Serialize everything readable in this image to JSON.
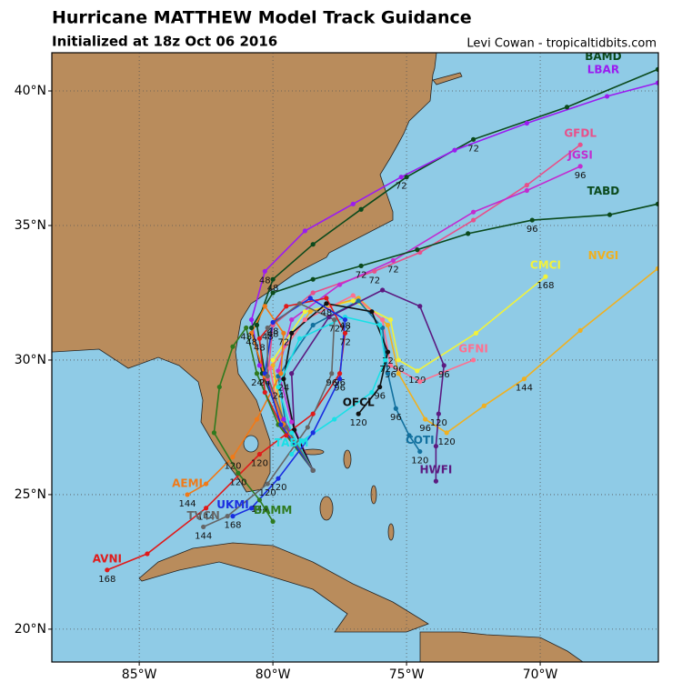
{
  "header": {
    "title": "Hurricane MATTHEW Model Track Guidance",
    "subtitle": "Initialized at 18z Oct 06 2016",
    "credit": "Levi Cowan - tropicaltidbits.com"
  },
  "map": {
    "lonlim": [
      -88.27,
      -65.58
    ],
    "latlim": [
      18.78,
      41.42
    ],
    "lonticks": [
      {
        "value": -85,
        "label": "85°W"
      },
      {
        "value": -80,
        "label": "80°W"
      },
      {
        "value": -75,
        "label": "75°W"
      },
      {
        "value": -70,
        "label": "70°W"
      }
    ],
    "latticks": [
      {
        "value": 20,
        "label": "20°N"
      },
      {
        "value": 25,
        "label": "25°N"
      },
      {
        "value": 30,
        "label": "30°N"
      },
      {
        "value": 35,
        "label": "35°N"
      },
      {
        "value": 40,
        "label": "40°N"
      }
    ],
    "grid": true,
    "tracks": [
      {
        "name": "BAMD",
        "color": "#0b4a1c",
        "lon": [
          -78.5,
          -79.5,
          -80.3,
          -80.6,
          -80,
          -78.5,
          -76.7,
          -75,
          -72.5,
          -69,
          -65.6
        ],
        "lat": [
          25.9,
          27.5,
          29.5,
          31.3,
          33,
          34.3,
          35.6,
          36.8,
          38.2,
          39.4,
          40.8
        ],
        "hours": [
          null,
          null,
          24,
          null,
          48,
          null,
          null,
          null,
          72,
          null,
          null
        ]
      },
      {
        "name": "LBAR",
        "color": "#9b1cf0",
        "lon": [
          -78.5,
          -79.6,
          -80.5,
          -80.8,
          -80.3,
          -78.8,
          -77,
          -75.2,
          -73.2,
          -70.5,
          -67.5,
          -65.6
        ],
        "lat": [
          25.9,
          27.8,
          29.8,
          31.5,
          33.3,
          34.8,
          35.8,
          36.8,
          37.8,
          38.8,
          39.8,
          40.3
        ],
        "hours": [
          null,
          null,
          null,
          null,
          48,
          null,
          null,
          72,
          null,
          null,
          null,
          null
        ]
      },
      {
        "name": "GFDL",
        "color": "#e8508a",
        "lon": [
          -78.5,
          -79.5,
          -80.2,
          -80,
          -78.5,
          -76.2,
          -74.5,
          -72.5,
          -70.5,
          -68.5
        ],
        "lat": [
          25.9,
          27.5,
          29.3,
          31.3,
          32.5,
          33.3,
          34,
          35.2,
          36.5,
          38
        ],
        "hours": [
          null,
          null,
          null,
          48,
          null,
          72,
          null,
          null,
          null,
          null
        ]
      },
      {
        "name": "JGSI",
        "color": "#c22cd0",
        "lon": [
          -78.5,
          -79.3,
          -79.8,
          -79.3,
          -77.5,
          -75.5,
          -72.5,
          -70.5,
          -68.5
        ],
        "lat": [
          25.9,
          27.7,
          29.6,
          31.5,
          32.8,
          33.7,
          35.5,
          36.3,
          37.2
        ],
        "hours": [
          null,
          null,
          null,
          null,
          null,
          72,
          null,
          null,
          96
        ]
      },
      {
        "name": "TABD",
        "color": "#0b4a1c",
        "lon": [
          -78.5,
          -79.6,
          -80.4,
          -80.8,
          -80,
          -78.5,
          -76.7,
          -74.6,
          -72.7,
          -70.3,
          -67.4,
          -65.6
        ],
        "lat": [
          25.9,
          27.6,
          29.5,
          31.2,
          32.5,
          33,
          33.5,
          34.1,
          34.7,
          35.2,
          35.4,
          35.8
        ],
        "hours": [
          null,
          null,
          null,
          null,
          null,
          null,
          72,
          null,
          null,
          96,
          null,
          null
        ]
      },
      {
        "name": "CMCI",
        "color": "#f2f23a",
        "lon": [
          -78.5,
          -79.8,
          -80,
          -78.8,
          -77,
          -75.6,
          -75.3,
          -74.6,
          -72.4,
          -69.8
        ],
        "lat": [
          25.9,
          27.6,
          30,
          31.8,
          32.2,
          31.5,
          30,
          29.6,
          31,
          33.1
        ],
        "hours": [
          null,
          null,
          null,
          null,
          null,
          null,
          96,
          120,
          null,
          168
        ]
      },
      {
        "name": "NVGI",
        "color": "#f0b020",
        "lon": [
          -78.5,
          -79.6,
          -80,
          -78.6,
          -76.8,
          -75.7,
          -75.3,
          -74.3,
          -73.5,
          -72.1,
          -70.6,
          -68.5,
          -65.6
        ],
        "lat": [
          25.9,
          27.6,
          29.8,
          31.8,
          32.3,
          31.3,
          29.5,
          27.8,
          27.3,
          28.3,
          29.3,
          31.1,
          33.4
        ],
        "hours": [
          null,
          null,
          null,
          null,
          null,
          null,
          null,
          96,
          120,
          null,
          144,
          null,
          null
        ]
      },
      {
        "name": "GFNI",
        "color": "#ff6f8f",
        "lon": [
          -78.5,
          -79.7,
          -80.1,
          -78.8,
          -77,
          -75.9,
          -75.6,
          -74.5,
          -72.5
        ],
        "lat": [
          25.9,
          27.6,
          29.7,
          31.5,
          32.4,
          31.5,
          29.8,
          29.2,
          30
        ],
        "hours": [
          null,
          null,
          null,
          null,
          null,
          null,
          96,
          null,
          null
        ]
      },
      {
        "name": "COTI",
        "color": "#12709e",
        "lon": [
          -78.5,
          -79.5,
          -79.8,
          -78.5,
          -76.8,
          -75.9,
          -75.7,
          -75.4,
          -74.9,
          -74.5
        ],
        "lat": [
          25.9,
          27.5,
          29.4,
          31.3,
          32.2,
          31.2,
          29.5,
          28.2,
          27.2,
          26.6
        ],
        "hours": [
          null,
          null,
          null,
          null,
          null,
          null,
          null,
          96,
          null,
          120
        ]
      },
      {
        "name": "HWFI",
        "color": "#5c1a80",
        "lon": [
          -78.5,
          -79.2,
          -79.3,
          -77.9,
          -75.9,
          -74.5,
          -73.6,
          -73.8,
          -73.9,
          -73.9
        ],
        "lat": [
          25.9,
          27.4,
          29.5,
          31.6,
          32.6,
          32,
          29.8,
          28,
          26.8,
          25.5
        ],
        "hours": [
          null,
          null,
          null,
          null,
          null,
          null,
          96,
          120,
          null,
          null
        ]
      },
      {
        "name": "OFCL",
        "color": "#111111",
        "lon": [
          -78.5,
          -79.2,
          -79.6,
          -79.3,
          -78,
          -76.3,
          -75.7,
          -76,
          -76.8
        ],
        "lat": [
          25.9,
          27.4,
          29.3,
          31,
          32.1,
          31.8,
          30.3,
          29,
          28
        ],
        "hours": [
          null,
          null,
          24,
          null,
          48,
          null,
          72,
          96,
          120
        ]
      },
      {
        "name": "TABM",
        "color": "#19e0e6",
        "lon": [
          -78.5,
          -79.3,
          -79.8,
          -79,
          -77.3,
          -76,
          -75.8,
          -76.3,
          -77.7,
          -78.9,
          -79.3
        ],
        "lat": [
          25.9,
          27.3,
          29,
          30.8,
          31.6,
          31.3,
          30,
          28.8,
          27.8,
          27,
          26.5
        ],
        "hours": [
          null,
          null,
          24,
          null,
          48,
          null,
          72,
          null,
          null,
          null,
          null
        ]
      },
      {
        "name": "AVNI",
        "color": "#e01a1a",
        "lon": [
          -78.5,
          -79.5,
          -80.3,
          -80.5,
          -79.5,
          -78,
          -77.3,
          -77.5,
          -78.5,
          -80.5,
          -82.5,
          -84.7,
          -86.2
        ],
        "lat": [
          25.9,
          27.2,
          28.8,
          30.8,
          32,
          32.3,
          31,
          29.5,
          28,
          26.5,
          24.5,
          22.8,
          22.2
        ],
        "hours": [
          null,
          null,
          null,
          48,
          null,
          null,
          72,
          96,
          null,
          120,
          144,
          null,
          168
        ]
      },
      {
        "name": "AEMI",
        "color": "#f07a18",
        "lon": [
          -78.5,
          -79.6,
          -80.3,
          -80.8,
          -80.3,
          -79.6,
          -79.7,
          -80.6,
          -81.5,
          -82.5,
          -83.2
        ],
        "lat": [
          25.9,
          27.6,
          29.4,
          31,
          32,
          31,
          29.5,
          27.8,
          26.4,
          25.4,
          25
        ],
        "hours": [
          null,
          null,
          null,
          48,
          null,
          72,
          null,
          null,
          120,
          null,
          144
        ]
      },
      {
        "name": "BAMM",
        "color": "#2f7a1f",
        "lon": [
          -78.5,
          -79.8,
          -80.6,
          -81,
          -81.5,
          -82,
          -82.2,
          -81.3,
          -80.5,
          -80
        ],
        "lat": [
          25.9,
          27.6,
          29.5,
          31.2,
          30.5,
          29,
          27.3,
          25.8,
          24.8,
          24
        ],
        "hours": [
          null,
          null,
          24,
          48,
          null,
          null,
          null,
          120,
          144,
          null
        ]
      },
      {
        "name": "UKMI",
        "color": "#1a2ee0",
        "lon": [
          -78.5,
          -79.7,
          -80.3,
          -80,
          -78.6,
          -77.3,
          -77.5,
          -78.5,
          -79.8,
          -80.8,
          -81.5
        ],
        "lat": [
          25.9,
          27.6,
          29.5,
          31.4,
          32.3,
          31.5,
          29.3,
          27.3,
          25.6,
          24.5,
          24.2
        ],
        "hours": [
          null,
          null,
          null,
          48,
          null,
          72,
          96,
          null,
          120,
          null,
          168
        ]
      },
      {
        "name": "TVCN",
        "color": "#666666",
        "lon": [
          -78.5,
          -79.5,
          -80.2,
          -80.2,
          -79,
          -77.7,
          -77.8,
          -78.7,
          -80.2,
          -81.7,
          -82.6
        ],
        "lat": [
          25.9,
          27.5,
          29.4,
          31.2,
          32.1,
          31.5,
          29.5,
          27.5,
          25.4,
          24.2,
          23.8
        ],
        "hours": [
          null,
          null,
          null,
          48,
          null,
          72,
          96,
          null,
          120,
          null,
          144
        ]
      }
    ]
  }
}
